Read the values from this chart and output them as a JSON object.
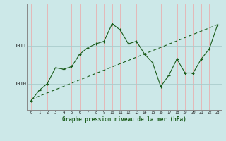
{
  "title": "Graphe pression niveau de la mer (hPa)",
  "background_color": "#cce8e8",
  "grid_color_v": "#e8b0b0",
  "grid_color_h": "#aacccc",
  "line_color": "#1a5c1a",
  "x_labels": [
    "0",
    "1",
    "2",
    "3",
    "4",
    "5",
    "6",
    "7",
    "8",
    "9",
    "10",
    "11",
    "12",
    "13",
    "14",
    "15",
    "16",
    "17",
    "18",
    "19",
    "20",
    "21",
    "22",
    "23"
  ],
  "xlim": [
    -0.5,
    23.5
  ],
  "ylim": [
    1009.3,
    1012.1
  ],
  "yticks": [
    1010,
    1011
  ],
  "curve1_x": [
    0,
    1,
    2,
    3,
    4,
    5,
    6,
    7,
    8,
    9,
    10,
    11,
    12,
    13,
    14,
    15,
    16,
    17,
    18,
    19,
    20,
    21,
    22,
    23
  ],
  "curve1_y": [
    1009.55,
    1009.82,
    1010.0,
    1010.42,
    1010.38,
    1010.45,
    1010.78,
    1010.95,
    1011.05,
    1011.12,
    1011.58,
    1011.42,
    1011.05,
    1011.12,
    1010.78,
    1010.55,
    1009.92,
    1010.22,
    1010.65,
    1010.28,
    1010.28,
    1010.65,
    1010.92,
    1011.55
  ]
}
